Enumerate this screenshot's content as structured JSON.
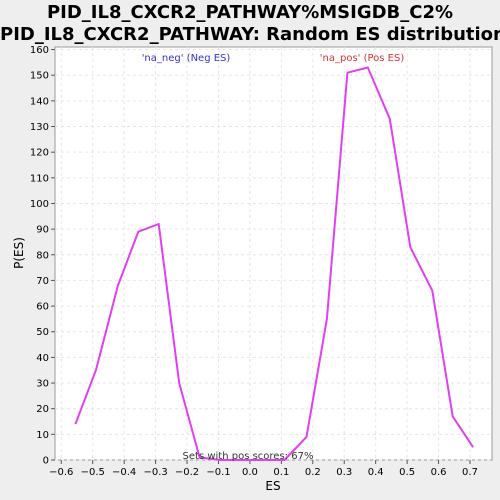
{
  "chart_data": {
    "type": "line",
    "title_line1": "PID_IL8_CXCR2_PATHWAY%MSIGDB_C2%",
    "title_line2": "PID_IL8_CXCR2_PATHWAY: Random ES distribution",
    "xlabel": "ES",
    "ylabel": "P(ES)",
    "xlim": [
      -0.62,
      0.77
    ],
    "ylim": [
      0,
      161
    ],
    "x_ticks": [
      -0.6,
      -0.5,
      -0.4,
      -0.3,
      -0.2,
      -0.1,
      0.0,
      0.1,
      0.2,
      0.3,
      0.4,
      0.5,
      0.6,
      0.7
    ],
    "x_tick_labels": [
      "−0.6",
      "−0.5",
      "−0.4",
      "−0.3",
      "−0.2",
      "−0.1",
      "0.0",
      "0.1",
      "0.2",
      "0.3",
      "0.4",
      "0.5",
      "0.6",
      "0.7"
    ],
    "y_ticks": [
      0,
      10,
      20,
      30,
      40,
      50,
      60,
      70,
      80,
      90,
      100,
      110,
      120,
      130,
      140,
      150,
      160
    ],
    "grid": true,
    "line_color": "#e040f0",
    "series": [
      {
        "x": [
          -0.555,
          -0.49,
          -0.42,
          -0.355,
          -0.29,
          -0.225,
          -0.16,
          -0.095,
          -0.03,
          0.04,
          0.11,
          0.18,
          0.245,
          0.31,
          0.375,
          0.445,
          0.51,
          0.58,
          0.645,
          0.71
        ],
        "y": [
          14,
          35,
          68,
          89,
          92,
          30,
          1,
          0,
          0,
          0,
          0,
          9,
          55,
          151,
          153,
          133,
          83,
          66,
          17,
          5
        ]
      }
    ],
    "legend": [
      {
        "label": "'na_neg' (Neg ES)",
        "color": "#3333cc"
      },
      {
        "label": "'na_pos' (Pos ES)",
        "color": "#dd3333"
      }
    ],
    "annotation": "Sets with pos scores: 67%"
  }
}
